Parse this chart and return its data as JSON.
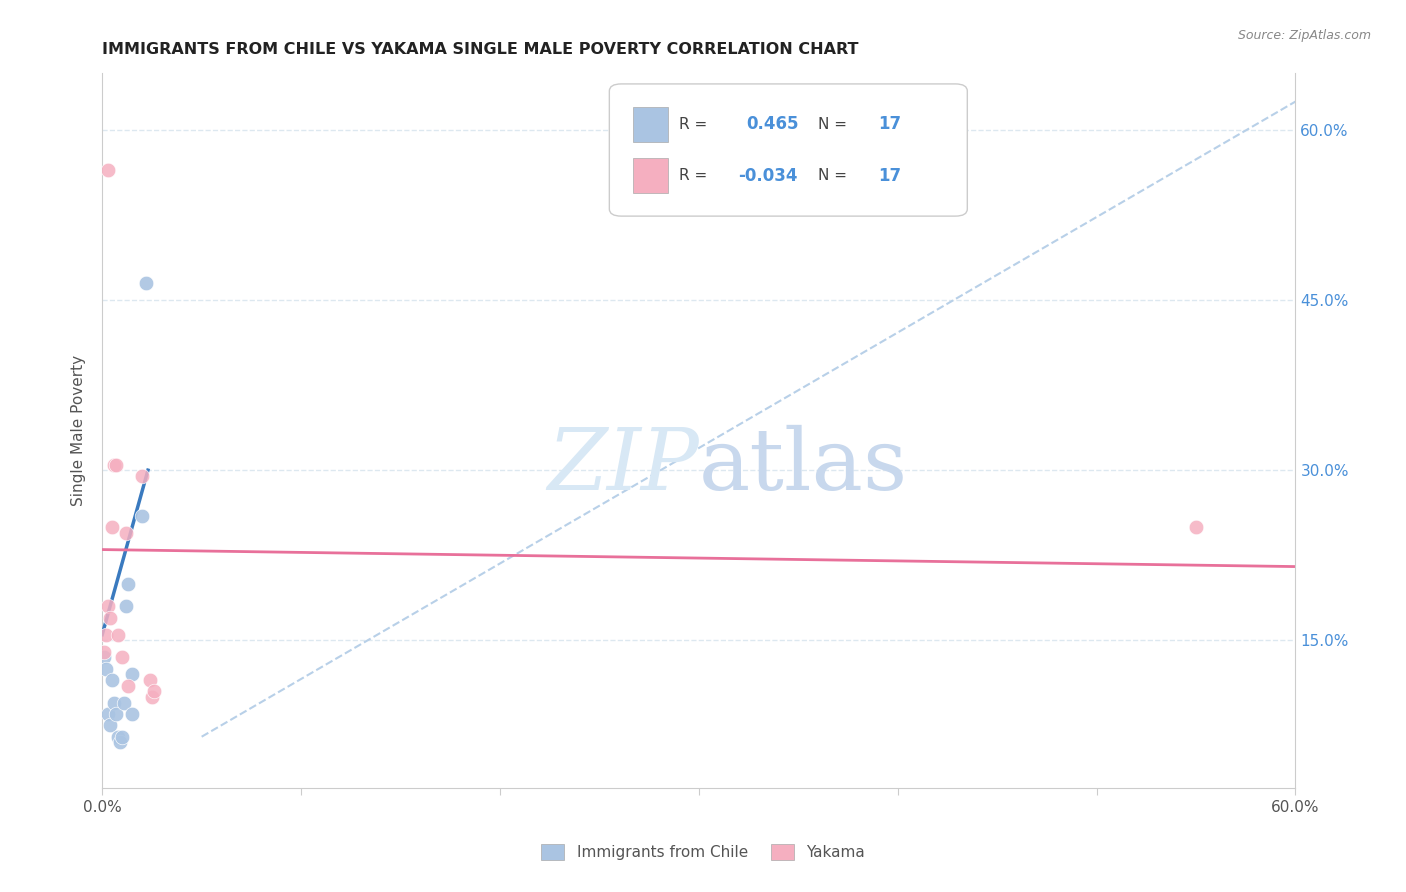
{
  "title": "IMMIGRANTS FROM CHILE VS YAKAMA SINGLE MALE POVERTY CORRELATION CHART",
  "source": "Source: ZipAtlas.com",
  "ylabel": "Single Male Poverty",
  "legend_label1": "Immigrants from Chile",
  "legend_label2": "Yakama",
  "r1": "0.465",
  "n1": "17",
  "r2": "-0.034",
  "n2": "17",
  "xlim": [
    0.0,
    0.6
  ],
  "ylim": [
    0.02,
    0.65
  ],
  "yticks": [
    0.15,
    0.3,
    0.45,
    0.6
  ],
  "ytick_labels": [
    "15.0%",
    "30.0%",
    "45.0%",
    "60.0%"
  ],
  "xticks": [
    0.0,
    0.1,
    0.2,
    0.3,
    0.4,
    0.5,
    0.6
  ],
  "xtick_labels": [
    "0.0%",
    "",
    "",
    "",
    "",
    "",
    "60.0%"
  ],
  "blue_scatter_x": [
    0.001,
    0.002,
    0.003,
    0.004,
    0.005,
    0.006,
    0.007,
    0.008,
    0.009,
    0.01,
    0.011,
    0.012,
    0.013,
    0.015,
    0.015,
    0.02,
    0.022
  ],
  "blue_scatter_y": [
    0.135,
    0.125,
    0.085,
    0.075,
    0.115,
    0.095,
    0.085,
    0.065,
    0.06,
    0.065,
    0.095,
    0.18,
    0.2,
    0.12,
    0.085,
    0.26,
    0.465
  ],
  "pink_scatter_x": [
    0.001,
    0.002,
    0.003,
    0.004,
    0.005,
    0.006,
    0.007,
    0.008,
    0.01,
    0.012,
    0.013,
    0.02,
    0.024,
    0.025,
    0.026,
    0.55,
    0.003
  ],
  "pink_scatter_y": [
    0.14,
    0.155,
    0.18,
    0.17,
    0.25,
    0.305,
    0.305,
    0.155,
    0.135,
    0.245,
    0.11,
    0.295,
    0.115,
    0.1,
    0.105,
    0.25,
    0.565
  ],
  "blue_line_x": [
    0.0,
    0.023
  ],
  "blue_line_y": [
    0.155,
    0.3
  ],
  "pink_line_x": [
    0.0,
    0.6
  ],
  "pink_line_y": [
    0.23,
    0.215
  ],
  "dashed_line_x": [
    0.05,
    0.6
  ],
  "dashed_line_y": [
    0.065,
    0.625
  ],
  "blue_color": "#aac4e2",
  "pink_color": "#f5afc0",
  "blue_line_color": "#3a7abf",
  "pink_line_color": "#e8709a",
  "dashed_color": "#b8d0e8",
  "watermark_zip": "ZIP",
  "watermark_atlas": "atlas",
  "watermark_color": "#d8e8f5",
  "background_color": "#ffffff",
  "grid_color": "#dde8f0",
  "title_color": "#222222",
  "axis_label_color": "#555555",
  "right_tick_color": "#4a90d9",
  "marker_size": 110
}
